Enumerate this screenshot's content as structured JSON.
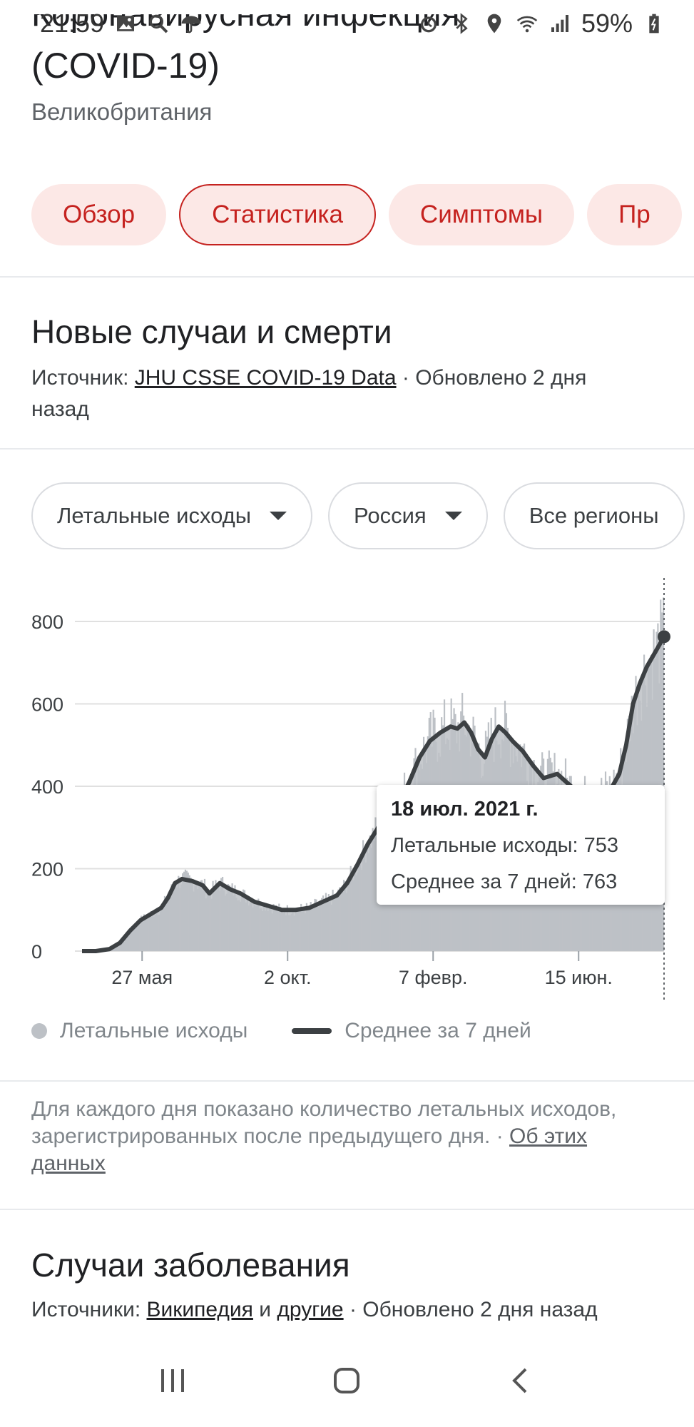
{
  "status_bar": {
    "time": "21:59",
    "battery": "59%",
    "icons_left": [
      "image-icon",
      "search-icon",
      "umbrella-icon"
    ],
    "icons_right": [
      "alarm-icon",
      "bluetooth-icon",
      "location-icon",
      "wifi-icon",
      "signal-icon",
      "battery-icon"
    ]
  },
  "header": {
    "cut_title": "Коронавирусная инфекция",
    "title": "(COVID-19)",
    "subtitle": "Великобритания"
  },
  "tabs": [
    {
      "label": "Обзор",
      "selected": false
    },
    {
      "label": "Статистика",
      "selected": true
    },
    {
      "label": "Симптомы",
      "selected": false
    },
    {
      "label": "Пр",
      "selected": false
    }
  ],
  "section1": {
    "title": "Новые случаи и смерти",
    "source_prefix": "Источник: ",
    "source_link": "JHU CSSE COVID-19 Data",
    "updated": " · Обновлено 2 дня назад"
  },
  "filters": [
    {
      "label": "Летальные исходы",
      "has_caret": true
    },
    {
      "label": "Россия",
      "has_caret": true
    },
    {
      "label": "Все регионы",
      "has_caret": false
    }
  ],
  "chart_data": {
    "type": "bar",
    "y_ticks": [
      "0",
      "200",
      "400",
      "600",
      "800"
    ],
    "ylim": [
      0,
      880
    ],
    "x_ticks": [
      "27 мая",
      "2 окт.",
      "7 февр.",
      "15 июн."
    ],
    "grid": true,
    "legend_position": "bottom",
    "series": [
      {
        "name": "Летальные исходы",
        "style": "bar",
        "color": "#bdc1c6"
      },
      {
        "name": "Среднее за 7 дней",
        "style": "line",
        "color": "#3c4043"
      }
    ],
    "avg_points": [
      [
        0,
        0
      ],
      [
        20,
        0
      ],
      [
        40,
        5
      ],
      [
        55,
        20
      ],
      [
        70,
        50
      ],
      [
        85,
        75
      ],
      [
        100,
        90
      ],
      [
        115,
        105
      ],
      [
        125,
        130
      ],
      [
        135,
        165
      ],
      [
        145,
        175
      ],
      [
        160,
        170
      ],
      [
        175,
        160
      ],
      [
        185,
        140
      ],
      [
        200,
        165
      ],
      [
        215,
        150
      ],
      [
        230,
        140
      ],
      [
        250,
        120
      ],
      [
        270,
        110
      ],
      [
        290,
        100
      ],
      [
        310,
        100
      ],
      [
        330,
        105
      ],
      [
        350,
        120
      ],
      [
        370,
        135
      ],
      [
        385,
        165
      ],
      [
        400,
        210
      ],
      [
        415,
        260
      ],
      [
        430,
        300
      ],
      [
        445,
        315
      ],
      [
        460,
        360
      ],
      [
        475,
        410
      ],
      [
        490,
        470
      ],
      [
        505,
        510
      ],
      [
        520,
        530
      ],
      [
        535,
        545
      ],
      [
        545,
        540
      ],
      [
        555,
        555
      ],
      [
        565,
        530
      ],
      [
        575,
        490
      ],
      [
        585,
        470
      ],
      [
        595,
        515
      ],
      [
        605,
        545
      ],
      [
        615,
        530
      ],
      [
        625,
        510
      ],
      [
        640,
        485
      ],
      [
        655,
        450
      ],
      [
        670,
        420
      ],
      [
        680,
        425
      ],
      [
        690,
        430
      ],
      [
        700,
        415
      ],
      [
        710,
        400
      ],
      [
        720,
        385
      ],
      [
        735,
        370
      ],
      [
        750,
        380
      ],
      [
        760,
        390
      ],
      [
        770,
        400
      ],
      [
        780,
        430
      ],
      [
        790,
        500
      ],
      [
        800,
        600
      ],
      [
        810,
        650
      ],
      [
        820,
        690
      ],
      [
        832,
        725
      ],
      [
        845,
        763
      ]
    ],
    "x_tick_positions": [
      0.14,
      0.39,
      0.64,
      0.89
    ],
    "tooltip": {
      "date": "18 июл. 2021 г.",
      "deaths_label": "Летальные исходы: 753",
      "avg_label": "Среднее за 7 дней: 763"
    }
  },
  "legend": {
    "deaths": "Летальные исходы",
    "avg": "Среднее за 7 дней"
  },
  "note": {
    "text": "Для каждого дня показано количество летальных исходов, зарегистрированных после предыдущего дня.",
    "sep": " · ",
    "link": "Об этих данных"
  },
  "section2": {
    "title": "Случаи заболевания",
    "source_prefix": "Источники: ",
    "link1": "Википедия",
    "and": " и ",
    "link2": "другие",
    "updated": " · Обновлено 2 дня назад"
  },
  "navbar": {
    "recent": "recent-apps-icon",
    "home": "home-icon",
    "back": "back-icon"
  }
}
